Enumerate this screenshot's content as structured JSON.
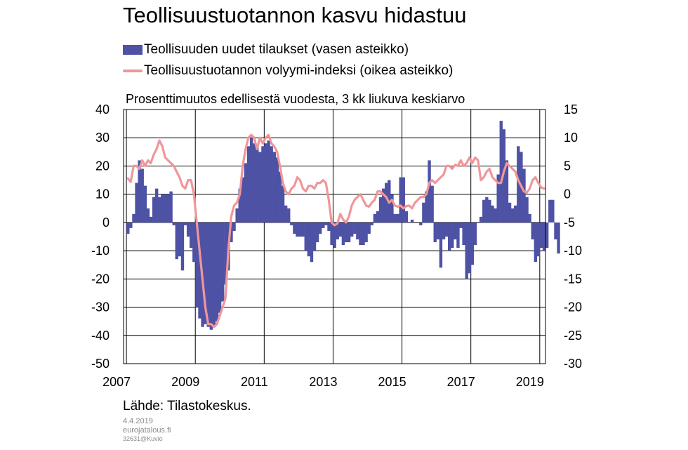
{
  "title": "Teollisuustuotannon kasvu hidastuu",
  "subtitle": "Prosenttimuutos edellisestä vuodesta, 3 kk liukuva keskiarvo",
  "source": "Lähde: Tilastokeskus.",
  "meta": {
    "date": "4.4.2019",
    "site": "eurojatalous.fi",
    "id": "32631@Kuvio"
  },
  "colors": {
    "bars": "#4e52a4",
    "line": "#f0969a",
    "grid": "#000000"
  },
  "chart_data": {
    "type": "bar+line",
    "x_ticks": [
      "2007",
      "2009",
      "2011",
      "2013",
      "2015",
      "2017",
      "2019"
    ],
    "xlim": [
      "2006-12",
      "2019-03"
    ],
    "ylim_left": [
      -50,
      40
    ],
    "ylim_right": [
      -30,
      15
    ],
    "yticks_left": [
      40,
      30,
      20,
      10,
      0,
      -10,
      -20,
      -30,
      -40,
      -50
    ],
    "yticks_right": [
      15,
      10,
      5,
      0,
      -5,
      -10,
      -15,
      -20,
      -25,
      -30
    ],
    "grid": true,
    "legend_position": "top",
    "series": [
      {
        "name": "Teollisuuden uudet tilaukset (vasen asteikko)",
        "type": "bar",
        "axis": "left",
        "start": "2007-01",
        "values": [
          -4,
          -2,
          3,
          14,
          22,
          19,
          13,
          5,
          2,
          9,
          12,
          9,
          10,
          10,
          10,
          11,
          -1,
          -13,
          -12,
          -17,
          -1,
          -5,
          -9,
          -14,
          -30,
          -34,
          -37,
          -36,
          -37,
          -38,
          -37,
          -35,
          -32,
          -28,
          -22,
          -17,
          -7,
          -3,
          5,
          12,
          16,
          21,
          27,
          30,
          28,
          27,
          25,
          27,
          28,
          29,
          27,
          25,
          23,
          18,
          13,
          6,
          5,
          -1,
          -4,
          -5,
          -5,
          -5,
          -10,
          -12,
          -14,
          -10,
          -7,
          -4,
          -2,
          -1,
          -3,
          -8,
          -9,
          -6,
          -5,
          -8,
          -7,
          -7,
          -5,
          -4,
          -6,
          -8,
          -8,
          -7,
          -4,
          -1,
          3,
          4,
          9,
          12,
          14,
          15,
          10,
          3,
          3,
          16,
          16,
          4,
          0,
          1,
          0,
          0,
          -1,
          7,
          11,
          22,
          13,
          -7,
          -6,
          -16,
          -6,
          -5,
          -10,
          -9,
          -6,
          -9,
          -2,
          -8,
          -20,
          -18,
          -15,
          -8,
          0,
          2,
          8,
          9,
          8,
          6,
          5,
          17,
          36,
          33,
          22,
          7,
          5,
          6,
          27,
          25,
          19,
          9,
          3,
          -6,
          -14,
          -12,
          -9,
          -10,
          -9,
          8,
          8,
          -6,
          -11
        ]
      },
      {
        "name": "Teollisuustuotannon volyymi-indeksi (oikea asteikko)",
        "type": "line",
        "axis": "right",
        "start": "2007-01",
        "values": [
          2.8,
          2.2,
          5,
          5,
          4.5,
          6,
          5,
          6,
          5.5,
          7,
          8,
          9.5,
          8.5,
          6.5,
          6,
          5.5,
          5,
          4,
          3,
          1.5,
          1,
          2.5,
          2.5,
          0,
          -5,
          -10,
          -15,
          -20,
          -23,
          -23,
          -23.5,
          -23,
          -21.5,
          -20,
          -18.5,
          -10,
          -4,
          -2,
          -1.5,
          0,
          5,
          8,
          10,
          10.5,
          10,
          8,
          10,
          9,
          10,
          10.5,
          9,
          8.5,
          7.5,
          5,
          2,
          0.5,
          0,
          1,
          1.5,
          3,
          2.5,
          1,
          0.5,
          1.5,
          1.5,
          1,
          2,
          2,
          2.5,
          2,
          -1,
          -5,
          -5.5,
          -5.2,
          -3.5,
          -4.5,
          -5,
          -4,
          -2,
          -1,
          -0.5,
          0,
          -1,
          -2,
          -2.2,
          -1.5,
          -1,
          0.5,
          0.5,
          0,
          -0.5,
          -1.5,
          -1,
          -2,
          -2.2,
          -2,
          -2.5,
          -2.1,
          -2,
          -2.5,
          -1.5,
          -1,
          -0.5,
          -0.5,
          0,
          2,
          2.5,
          2,
          2.5,
          3,
          3.5,
          5,
          5,
          4.5,
          5.2,
          5,
          6,
          5,
          5.5,
          6.5,
          5.5,
          6.5,
          6,
          2.5,
          3,
          4,
          4.5,
          3,
          2.5,
          2,
          2,
          4,
          5.5,
          5,
          4.5,
          4,
          2.5,
          1.5,
          0.5,
          0.3,
          1,
          2.5,
          3,
          2,
          1.2,
          1
        ]
      }
    ]
  }
}
